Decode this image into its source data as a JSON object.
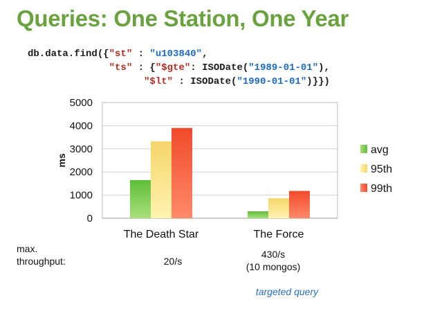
{
  "title": "Queries: One Station, One Year",
  "code": {
    "line1": {
      "pre": "db.data.find({",
      "k1": "\"st\"",
      "mid1": " : ",
      "s1": "\"u103840\"",
      "post1": ","
    },
    "line2": {
      "indent": "              ",
      "k2": "\"ts\"",
      "mid2": " : {",
      "k3": "\"$gte\"",
      "mid3": ": ISODate(",
      "s2": "\"1989-01-01\"",
      "post2": "),"
    },
    "line3": {
      "indent": "                    ",
      "k4": "\"$lt\"",
      "mid4": " : ISODate(",
      "s3": "\"1990-01-01\"",
      "post3": ")}})"
    }
  },
  "chart_data": {
    "type": "bar",
    "categories": [
      "The Death Star",
      "The Force"
    ],
    "series": [
      {
        "name": "avg",
        "values": [
          1650,
          300
        ]
      },
      {
        "name": "95th",
        "values": [
          3320,
          860
        ]
      },
      {
        "name": "99th",
        "values": [
          3900,
          1180
        ]
      }
    ],
    "ylabel": "ms",
    "ylim": [
      0,
      5000
    ],
    "yticks": [
      "0",
      "1000",
      "2000",
      "3000",
      "4000",
      "5000"
    ],
    "grid": true,
    "legend_position": "right",
    "colors": {
      "avg": [
        "#a9df7a",
        "#5fbe3a"
      ],
      "95th": [
        "#fff3b0",
        "#f5d56a"
      ],
      "99th": [
        "#ff8a6a",
        "#f04a2a"
      ]
    }
  },
  "throughput": {
    "label": "max.\nthroughput:",
    "death_star": "20/s",
    "force_line1": "430/s",
    "force_line2": "(10 mongos)",
    "note": "targeted query"
  }
}
